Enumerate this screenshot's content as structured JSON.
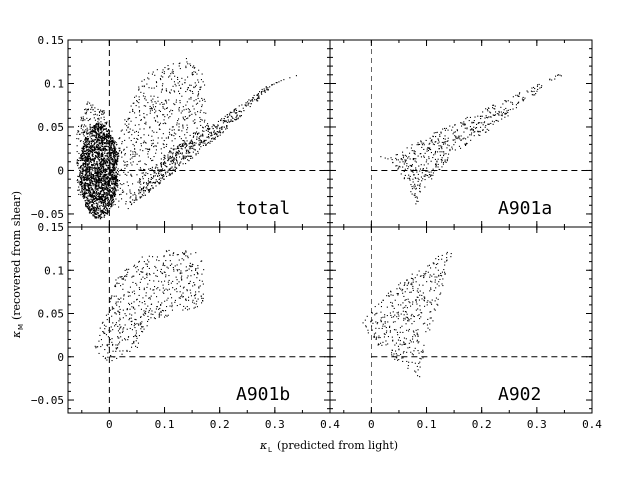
{
  "chart_data": {
    "type": "scatter",
    "layout": "2x2 panels, shared axes",
    "x_axis": {
      "symbol": "κ",
      "subscript": "L",
      "label_text": "(predicted from light)",
      "range": [
        -0.075,
        0.4
      ],
      "ticks": [
        0,
        0.1,
        0.2,
        0.3,
        0.4
      ],
      "tick_labels_left": [
        "0",
        "0.1",
        "0.2",
        "0.3",
        "0.4"
      ],
      "tick_labels_right": [
        "0",
        "0.1",
        "0.2",
        "0.3",
        "0.4"
      ]
    },
    "y_axis": {
      "symbol": "κ",
      "subscript": "M",
      "label_text": "(recovered from shear)",
      "range": [
        -0.065,
        0.15
      ],
      "ticks": [
        -0.05,
        0,
        0.05,
        0.1,
        0.15
      ],
      "tick_labels_top": [
        "−0.05",
        "0",
        "0.05",
        "0.1",
        "0.15"
      ],
      "tick_labels_bottom": [
        "−0.05",
        "0",
        "0.05",
        "0.1",
        "0.15"
      ]
    },
    "reference_lines": {
      "x": 0,
      "y": 0,
      "style": "dashed"
    },
    "panels": [
      {
        "name": "total",
        "label": "total",
        "position": "top-left",
        "regions": [
          {
            "kind": "ellipse",
            "cx": -0.02,
            "cy": 0.0,
            "rx": 0.035,
            "ry": 0.055,
            "n": 1400
          },
          {
            "kind": "polygon",
            "n": 700,
            "pts": [
              [
                -0.03,
                -0.05
              ],
              [
                0.0,
                0.02
              ],
              [
                0.06,
                0.11
              ],
              [
                0.1,
                0.12
              ],
              [
                0.14,
                0.13
              ],
              [
                0.17,
                0.11
              ],
              [
                0.18,
                0.05
              ],
              [
                0.15,
                0.03
              ],
              [
                0.09,
                -0.01
              ],
              [
                0.03,
                -0.04
              ]
            ]
          },
          {
            "kind": "polygon",
            "n": 650,
            "pts": [
              [
                0.03,
                -0.045
              ],
              [
                0.1,
                0.02
              ],
              [
                0.2,
                0.06
              ],
              [
                0.29,
                0.1
              ],
              [
                0.36,
                0.115
              ],
              [
                0.3,
                0.1
              ],
              [
                0.2,
                0.04
              ],
              [
                0.12,
                0.0
              ],
              [
                0.06,
                -0.03
              ]
            ]
          },
          {
            "kind": "polygon",
            "n": 500,
            "pts": [
              [
                -0.06,
                -0.03
              ],
              [
                -0.06,
                0.05
              ],
              [
                -0.04,
                0.08
              ],
              [
                -0.01,
                0.07
              ],
              [
                0.02,
                0.02
              ],
              [
                -0.01,
                -0.03
              ]
            ]
          }
        ]
      },
      {
        "name": "A901a",
        "label": "A901a",
        "position": "top-right",
        "regions": [
          {
            "kind": "polygon",
            "n": 520,
            "pts": [
              [
                0.0,
                0.02
              ],
              [
                0.03,
                0.015
              ],
              [
                0.1,
                0.04
              ],
              [
                0.2,
                0.07
              ],
              [
                0.3,
                0.1
              ],
              [
                0.37,
                0.12
              ],
              [
                0.32,
                0.1
              ],
              [
                0.22,
                0.05
              ],
              [
                0.15,
                0.02
              ],
              [
                0.1,
                -0.015
              ],
              [
                0.08,
                -0.04
              ],
              [
                0.05,
                0.0
              ],
              [
                0.03,
                0.01
              ]
            ]
          }
        ]
      },
      {
        "name": "A901b",
        "label": "A901b",
        "position": "bottom-left",
        "regions": [
          {
            "kind": "polygon",
            "n": 560,
            "pts": [
              [
                -0.02,
                0.03
              ],
              [
                0.01,
                0.09
              ],
              [
                0.06,
                0.12
              ],
              [
                0.12,
                0.125
              ],
              [
                0.17,
                0.12
              ],
              [
                0.17,
                0.06
              ],
              [
                0.12,
                0.05
              ],
              [
                0.07,
                0.04
              ],
              [
                0.05,
                0.01
              ],
              [
                0.0,
                -0.005
              ],
              [
                -0.03,
                0.005
              ]
            ]
          }
        ]
      },
      {
        "name": "A902",
        "label": "A902",
        "position": "bottom-right",
        "regions": [
          {
            "kind": "polygon",
            "n": 420,
            "pts": [
              [
                -0.02,
                0.04
              ],
              [
                0.02,
                0.07
              ],
              [
                0.08,
                0.1
              ],
              [
                0.15,
                0.13
              ],
              [
                0.14,
                0.1
              ],
              [
                0.12,
                0.06
              ],
              [
                0.1,
                0.02
              ],
              [
                0.085,
                -0.03
              ],
              [
                0.06,
                -0.01
              ],
              [
                0.03,
                0.0
              ],
              [
                0.0,
                0.02
              ]
            ]
          }
        ]
      }
    ]
  }
}
